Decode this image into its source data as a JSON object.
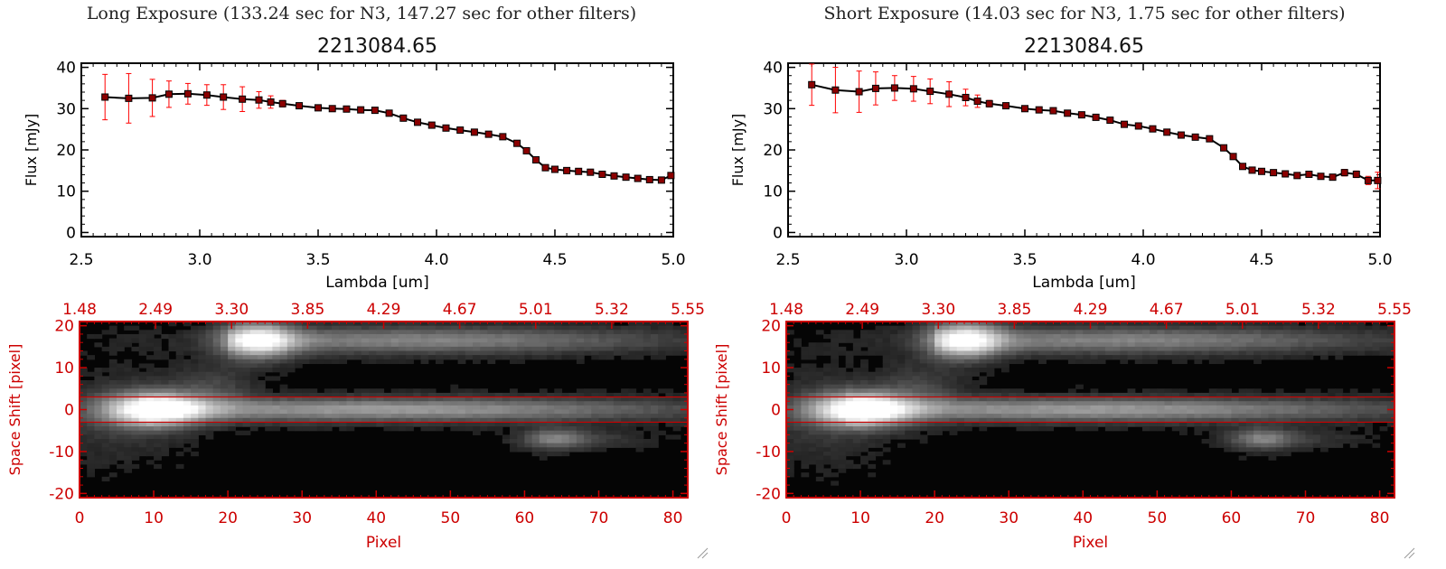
{
  "panels": [
    {
      "title": "Long Exposure (133.24 sec for N3, 147.27 sec for other filters)",
      "spectrum": {
        "type": "scatter",
        "title": "2213084.65",
        "xlabel": "Lambda [um]",
        "ylabel": "Flux [mJy]",
        "xlim": [
          2.5,
          5.0
        ],
        "ylim": [
          -1,
          41
        ],
        "xticks": [
          "2.5",
          "3.0",
          "3.5",
          "4.0",
          "4.5",
          "5.0"
        ],
        "yticks": [
          "0",
          "10",
          "20",
          "30",
          "40"
        ],
        "x": [
          2.6,
          2.7,
          2.8,
          2.87,
          2.95,
          3.03,
          3.1,
          3.18,
          3.25,
          3.3,
          3.35,
          3.42,
          3.5,
          3.56,
          3.62,
          3.68,
          3.74,
          3.8,
          3.86,
          3.92,
          3.98,
          4.04,
          4.1,
          4.16,
          4.22,
          4.28,
          4.34,
          4.38,
          4.42,
          4.46,
          4.5,
          4.55,
          4.6,
          4.65,
          4.7,
          4.75,
          4.8,
          4.85,
          4.9,
          4.95,
          4.99
        ],
        "y": [
          32.8,
          32.5,
          32.6,
          33.5,
          33.6,
          33.3,
          32.8,
          32.3,
          32.1,
          31.6,
          31.2,
          30.7,
          30.2,
          30.0,
          29.9,
          29.7,
          29.6,
          28.9,
          27.7,
          26.7,
          26.0,
          25.3,
          24.8,
          24.3,
          23.8,
          23.2,
          21.6,
          19.8,
          17.6,
          15.7,
          15.3,
          15.0,
          14.8,
          14.6,
          14.1,
          13.7,
          13.4,
          13.1,
          12.8,
          12.7,
          13.8
        ],
        "err": [
          5.5,
          6.0,
          4.5,
          3.2,
          2.5,
          2.5,
          3.0,
          3.0,
          2.0,
          1.5,
          0.8,
          0.5,
          0.5,
          0.5,
          0.5,
          0.5,
          0.5,
          0.5,
          0.5,
          0.5,
          0.5,
          0.5,
          0.5,
          0.5,
          0.5,
          0.5,
          0.5,
          0.5,
          0.5,
          0.5,
          0.5,
          0.5,
          0.5,
          0.5,
          0.5,
          0.5,
          0.5,
          0.5,
          0.5,
          0.5,
          0.5
        ],
        "marker_color": "#8b0000",
        "line_color": "#000000",
        "errorbar_color": "#ff0000"
      },
      "image": {
        "type": "heatmap",
        "xlabel": "Pixel",
        "ylabel": "Space Shift [pixel]",
        "xlim": [
          0,
          82
        ],
        "ylim": [
          -21,
          21
        ],
        "xticks": [
          "0",
          "10",
          "20",
          "30",
          "40",
          "50",
          "60",
          "70",
          "80"
        ],
        "yticks": [
          "-20",
          "-10",
          "0",
          "10",
          "20"
        ],
        "top_ticks": [
          "1.48",
          "2.49",
          "3.30",
          "3.85",
          "4.29",
          "4.67",
          "5.01",
          "5.32",
          "5.55"
        ],
        "aperture_lines": [
          3,
          -3
        ],
        "axis_color": "#cc0000"
      }
    },
    {
      "title": "Short Exposure (14.03 sec for N3, 1.75 sec for other filters)",
      "spectrum": {
        "type": "scatter",
        "title": "2213084.65",
        "xlabel": "Lambda [um]",
        "ylabel": "Flux [mJy]",
        "xlim": [
          2.5,
          5.0
        ],
        "ylim": [
          -1,
          41
        ],
        "xticks": [
          "2.5",
          "3.0",
          "3.5",
          "4.0",
          "4.5",
          "5.0"
        ],
        "yticks": [
          "0",
          "10",
          "20",
          "30",
          "40"
        ],
        "x": [
          2.6,
          2.7,
          2.8,
          2.87,
          2.95,
          3.03,
          3.1,
          3.18,
          3.25,
          3.3,
          3.35,
          3.42,
          3.5,
          3.56,
          3.62,
          3.68,
          3.74,
          3.8,
          3.86,
          3.92,
          3.98,
          4.04,
          4.1,
          4.16,
          4.22,
          4.28,
          4.34,
          4.38,
          4.42,
          4.46,
          4.5,
          4.55,
          4.6,
          4.65,
          4.7,
          4.75,
          4.8,
          4.85,
          4.9,
          4.95,
          4.99
        ],
        "y": [
          35.8,
          34.5,
          34.1,
          34.9,
          35.0,
          34.8,
          34.2,
          33.5,
          32.7,
          31.8,
          31.2,
          30.7,
          30.0,
          29.7,
          29.5,
          28.9,
          28.5,
          27.9,
          27.2,
          26.2,
          25.8,
          25.1,
          24.3,
          23.6,
          23.1,
          22.7,
          20.5,
          18.4,
          16.0,
          15.1,
          14.8,
          14.5,
          14.2,
          13.8,
          14.1,
          13.6,
          13.4,
          14.5,
          14.1,
          12.6,
          12.6
        ],
        "err": [
          5.0,
          5.5,
          5.0,
          4.0,
          3.0,
          3.0,
          3.0,
          3.0,
          2.0,
          1.5,
          0.8,
          0.5,
          0.5,
          0.5,
          0.5,
          0.5,
          0.5,
          0.5,
          0.5,
          0.5,
          0.5,
          0.5,
          0.5,
          0.5,
          0.5,
          0.5,
          0.5,
          0.5,
          0.5,
          0.5,
          0.5,
          0.5,
          0.5,
          0.5,
          0.5,
          0.5,
          0.5,
          0.8,
          0.8,
          1.0,
          2.0
        ],
        "marker_color": "#8b0000",
        "line_color": "#000000",
        "errorbar_color": "#ff0000"
      },
      "image": {
        "type": "heatmap",
        "xlabel": "Pixel",
        "ylabel": "Space Shift [pixel]",
        "xlim": [
          0,
          82
        ],
        "ylim": [
          -21,
          21
        ],
        "xticks": [
          "0",
          "10",
          "20",
          "30",
          "40",
          "50",
          "60",
          "70",
          "80"
        ],
        "yticks": [
          "-20",
          "-10",
          "0",
          "10",
          "20"
        ],
        "top_ticks": [
          "1.48",
          "2.49",
          "3.30",
          "3.85",
          "4.29",
          "4.67",
          "5.01",
          "5.32",
          "5.55"
        ],
        "aperture_lines": [
          3,
          -3
        ],
        "axis_color": "#cc0000"
      }
    }
  ]
}
